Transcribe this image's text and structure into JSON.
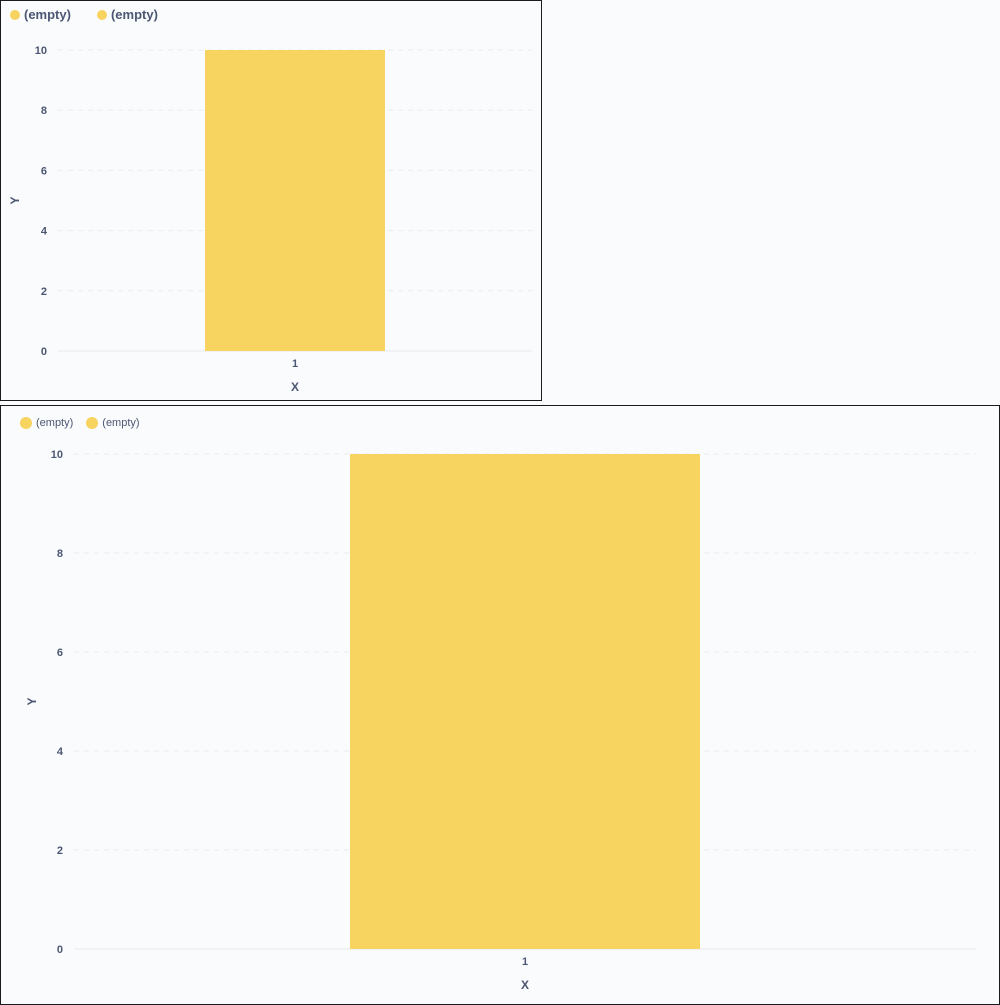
{
  "chart_data": [
    {
      "type": "bar",
      "legend": [
        "(empty)",
        "(empty)"
      ],
      "categories": [
        "1"
      ],
      "series": [
        {
          "name": "(empty)",
          "values": [
            10
          ],
          "color": "#f7d35f"
        },
        {
          "name": "(empty)",
          "values": [
            10
          ],
          "color": "#f7d35f"
        }
      ],
      "xlabel": "X",
      "ylabel": "Y",
      "ylim": [
        0,
        10
      ],
      "yticks": [
        "0",
        "2",
        "4",
        "6",
        "8",
        "10"
      ],
      "grid": true,
      "legend_placement": "top-left"
    },
    {
      "type": "bar",
      "legend": [
        "(empty)",
        "(empty)"
      ],
      "categories": [
        "1"
      ],
      "series": [
        {
          "name": "(empty)",
          "values": [
            10
          ],
          "color": "#f7d35f"
        },
        {
          "name": "(empty)",
          "values": [
            10
          ],
          "color": "#f7d35f"
        }
      ],
      "xlabel": "X",
      "ylabel": "Y",
      "ylim": [
        0,
        10
      ],
      "yticks": [
        "0",
        "2",
        "4",
        "6",
        "8",
        "10"
      ],
      "grid": true,
      "legend_placement": "top-left"
    }
  ]
}
